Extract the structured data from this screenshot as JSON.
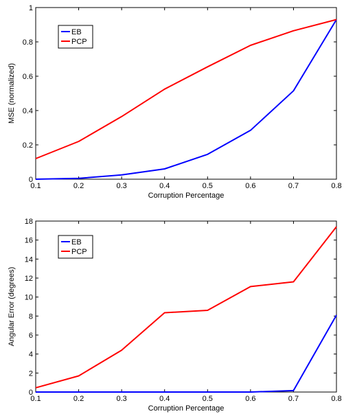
{
  "chart_data": [
    {
      "type": "line",
      "title": "",
      "xlabel": "Corruption Percentage",
      "ylabel": "MSE (normalized)",
      "x": [
        0.1,
        0.2,
        0.3,
        0.4,
        0.5,
        0.6,
        0.7,
        0.8
      ],
      "xlim": [
        0.1,
        0.8
      ],
      "ylim": [
        0,
        1
      ],
      "xticks": [
        "0.1",
        "0.2",
        "0.3",
        "0.4",
        "0.5",
        "0.6",
        "0.7",
        "0.8"
      ],
      "yticks": [
        "0",
        "0.2",
        "0.4",
        "0.6",
        "0.8",
        "1"
      ],
      "grid": false,
      "legend_position": "top-left",
      "series": [
        {
          "name": "EB",
          "color": "#0000ff",
          "values": [
            0.0,
            0.005,
            0.025,
            0.06,
            0.145,
            0.285,
            0.515,
            0.93
          ]
        },
        {
          "name": "PCP",
          "color": "#ff0000",
          "values": [
            0.12,
            0.22,
            0.365,
            0.525,
            0.655,
            0.78,
            0.865,
            0.93
          ]
        }
      ]
    },
    {
      "type": "line",
      "title": "",
      "xlabel": "Corruption Percentage",
      "ylabel": "Angular Error (degrees)",
      "x": [
        0.1,
        0.2,
        0.3,
        0.4,
        0.5,
        0.6,
        0.7,
        0.8
      ],
      "xlim": [
        0.1,
        0.8
      ],
      "ylim": [
        0,
        18
      ],
      "xticks": [
        "0.1",
        "0.2",
        "0.3",
        "0.4",
        "0.5",
        "0.6",
        "0.7",
        "0.8"
      ],
      "yticks": [
        "0",
        "2",
        "4",
        "6",
        "8",
        "10",
        "12",
        "14",
        "16",
        "18"
      ],
      "grid": false,
      "legend_position": "top-left",
      "series": [
        {
          "name": "EB",
          "color": "#0000ff",
          "values": [
            0.0,
            0.0,
            0.0,
            0.0,
            0.0,
            0.0,
            0.15,
            8.1
          ]
        },
        {
          "name": "PCP",
          "color": "#ff0000",
          "values": [
            0.45,
            1.7,
            4.4,
            8.35,
            8.6,
            11.1,
            11.6,
            17.4
          ]
        }
      ]
    }
  ]
}
